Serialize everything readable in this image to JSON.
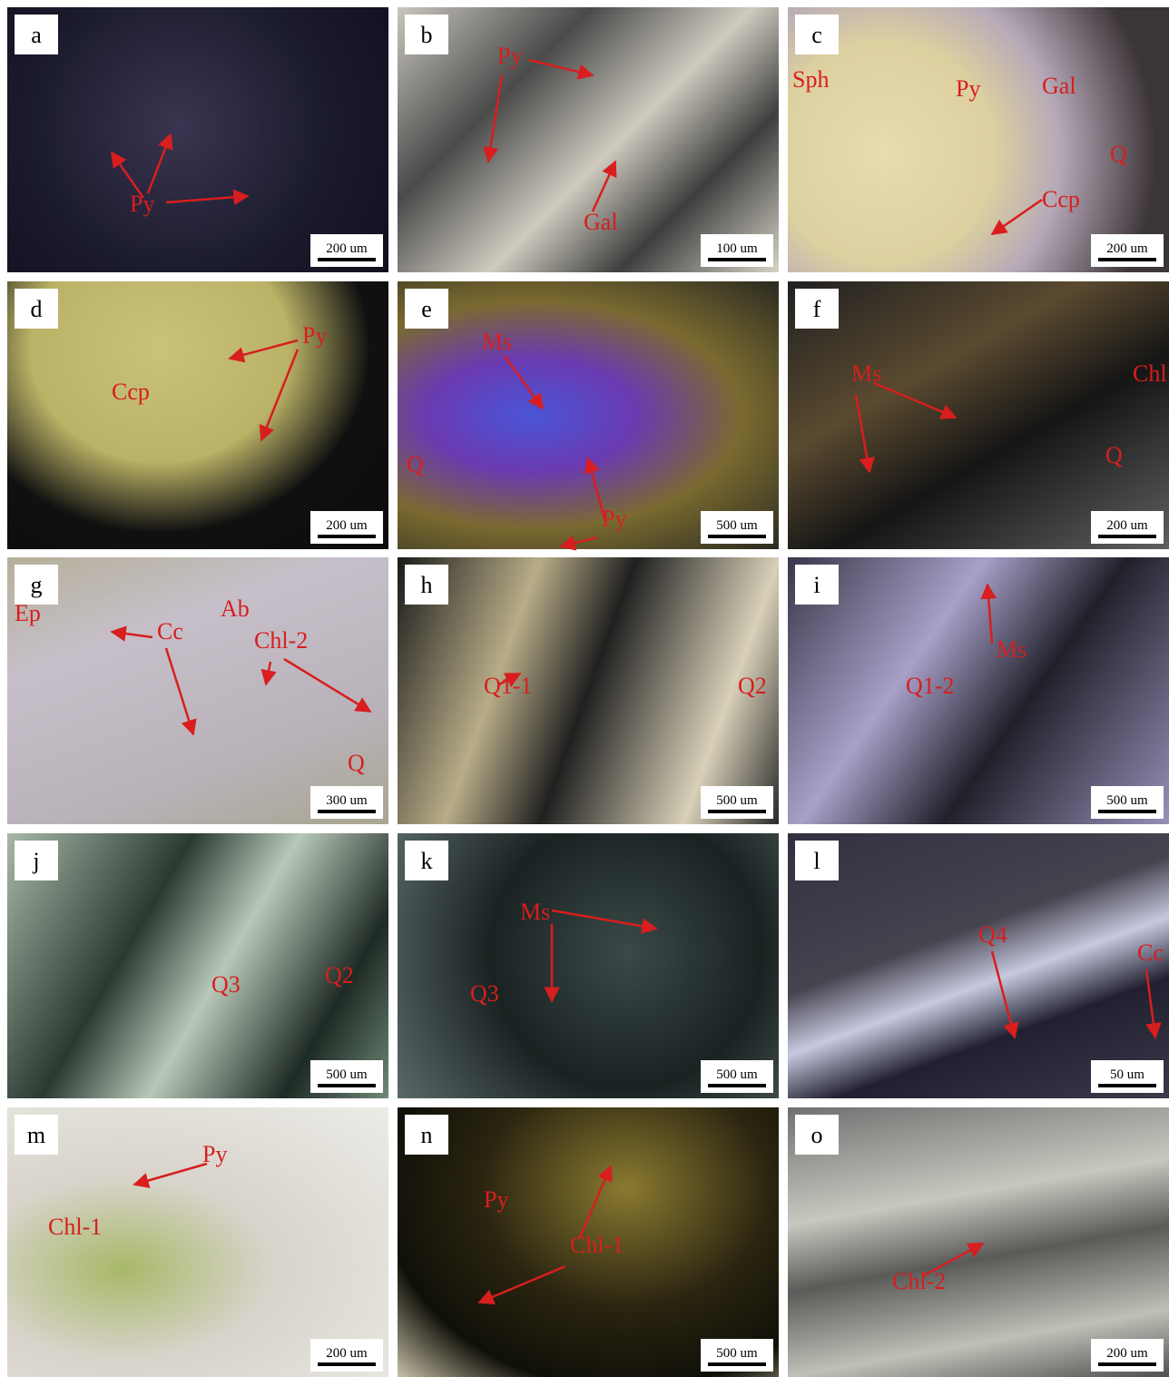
{
  "panels": [
    {
      "letter": "a",
      "labels": [
        "Py"
      ],
      "scale": "200 um"
    },
    {
      "letter": "b",
      "labels": [
        "Py",
        "Gal"
      ],
      "scale": "100 um"
    },
    {
      "letter": "c",
      "labels": [
        "Sph",
        "Py",
        "Gal",
        "Q",
        "Ccp"
      ],
      "scale": "200 um"
    },
    {
      "letter": "d",
      "labels": [
        "Py",
        "Ccp"
      ],
      "scale": "200 um"
    },
    {
      "letter": "e",
      "labels": [
        "Ms",
        "Q",
        "Py"
      ],
      "scale": "500 um"
    },
    {
      "letter": "f",
      "labels": [
        "Ms",
        "Chl",
        "Q"
      ],
      "scale": "200 um"
    },
    {
      "letter": "g",
      "labels": [
        "Ep",
        "Cc",
        "Ab",
        "Chl-2",
        "Q"
      ],
      "scale": "300 um"
    },
    {
      "letter": "h",
      "labels": [
        "Q1-1",
        "Q2"
      ],
      "scale": "500 um"
    },
    {
      "letter": "i",
      "labels": [
        "Ms",
        "Q1-2"
      ],
      "scale": "500 um"
    },
    {
      "letter": "j",
      "labels": [
        "Q3",
        "Q2"
      ],
      "scale": "500 um"
    },
    {
      "letter": "k",
      "labels": [
        "Ms",
        "Q3"
      ],
      "scale": "500 um"
    },
    {
      "letter": "l",
      "labels": [
        "Q4",
        "Cc"
      ],
      "scale": "50 um"
    },
    {
      "letter": "m",
      "labels": [
        "Py",
        "Chl-1"
      ],
      "scale": "200 um"
    },
    {
      "letter": "n",
      "labels": [
        "Py",
        "Chl-1"
      ],
      "scale": "500 um"
    },
    {
      "letter": "o",
      "labels": [
        "Chl-2"
      ],
      "scale": "200 um"
    }
  ]
}
